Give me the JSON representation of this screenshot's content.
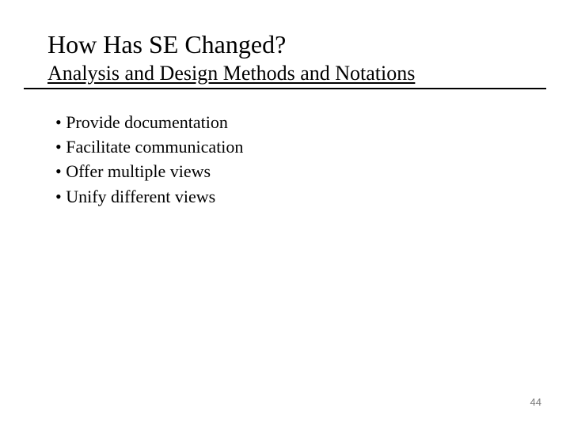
{
  "slide": {
    "title": "How Has SE Changed?",
    "subtitle": "Analysis and Design Methods and Notations",
    "bullets": [
      "Provide documentation",
      "Facilitate communication",
      "Offer multiple views",
      "Unify different views"
    ],
    "page_number": "44",
    "colors": {
      "background": "#ffffff",
      "text": "#000000",
      "rule": "#000000",
      "page_number": "#7a7a7a"
    },
    "typography": {
      "title_fontsize": 32,
      "subtitle_fontsize": 26,
      "bullet_fontsize": 22,
      "page_number_fontsize": 13,
      "font_family": "Georgia, Times New Roman, serif"
    }
  }
}
